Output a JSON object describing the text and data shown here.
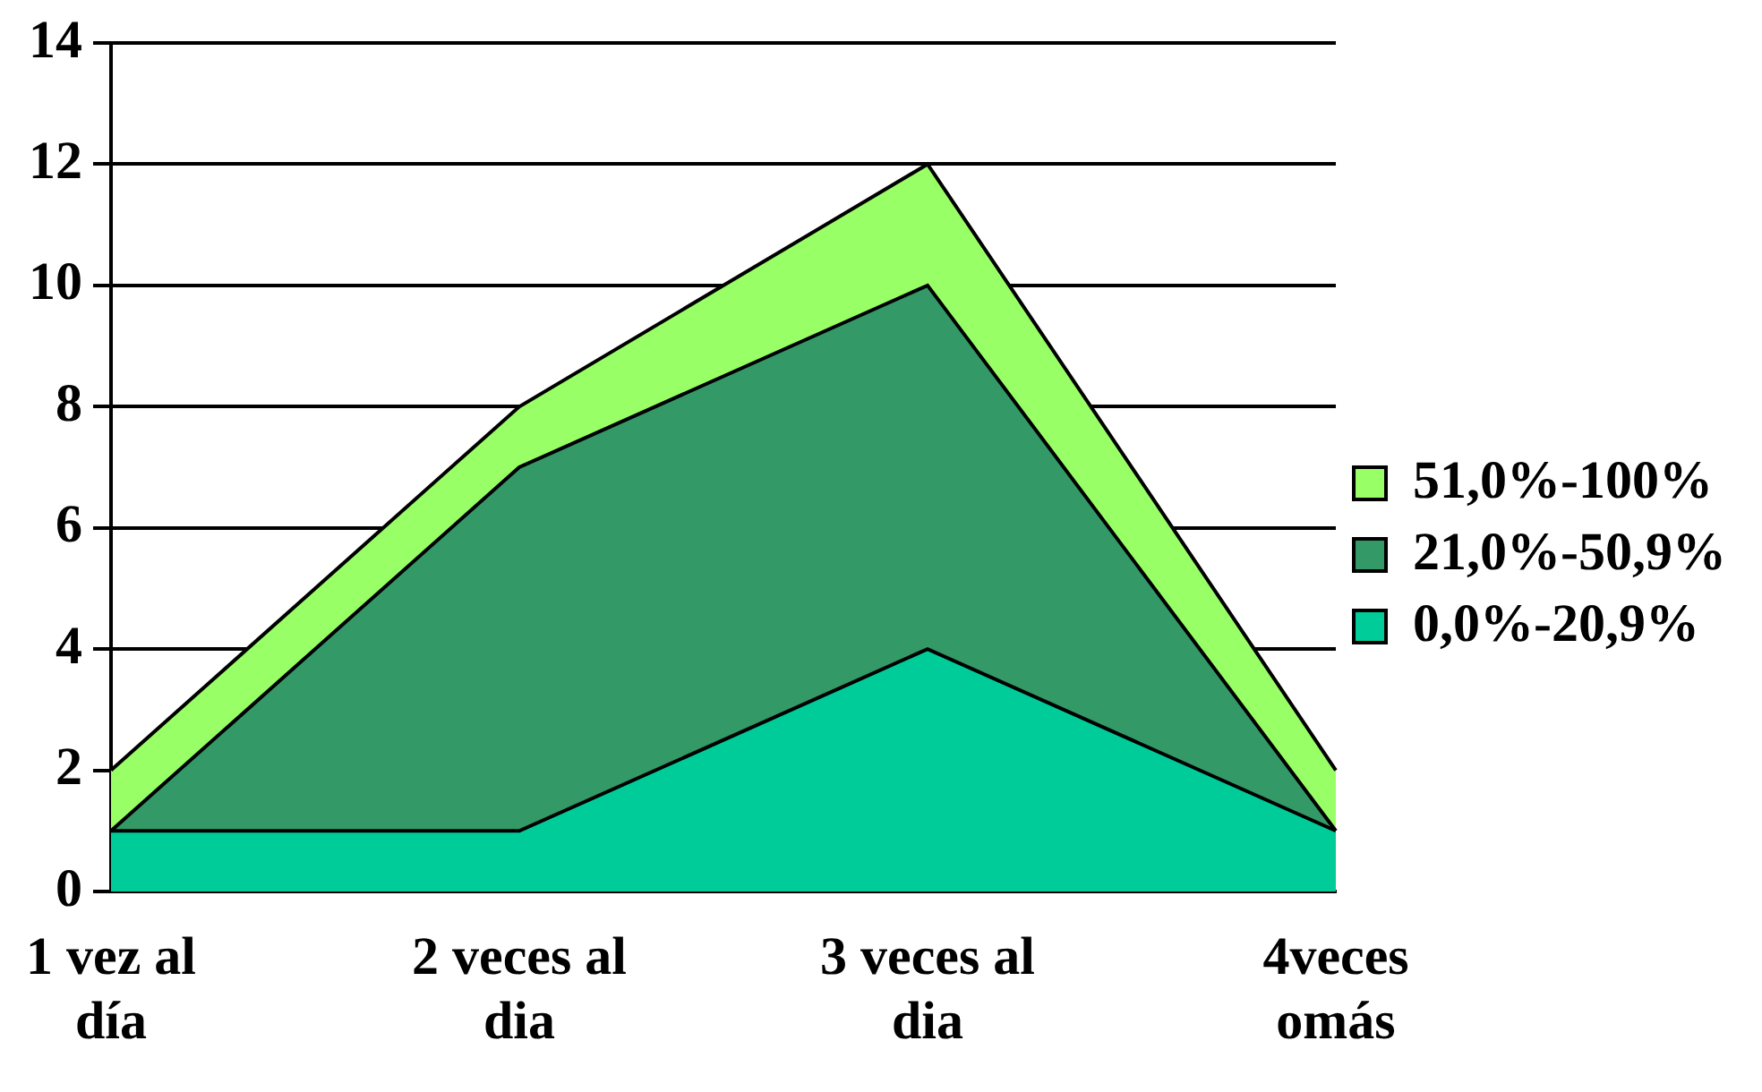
{
  "chart_data": {
    "type": "area",
    "stacked": true,
    "categories": [
      "1 vez al día",
      "2 veces al dia",
      "3 veces al dia",
      "4veces omás"
    ],
    "series": [
      {
        "name": "0,0%-20,9%",
        "color": "#00cc99",
        "values": [
          1,
          1,
          4,
          1
        ]
      },
      {
        "name": "21,0%-50,9%",
        "color": "#339966",
        "values": [
          0,
          6,
          6,
          0
        ]
      },
      {
        "name": "51,0%-100%",
        "color": "#99ff66",
        "values": [
          1,
          1,
          2,
          1
        ]
      }
    ],
    "ylim": [
      0,
      14
    ],
    "yticks": [
      0,
      2,
      4,
      6,
      8,
      10,
      12,
      14
    ],
    "grid": "y",
    "legend": "right"
  }
}
